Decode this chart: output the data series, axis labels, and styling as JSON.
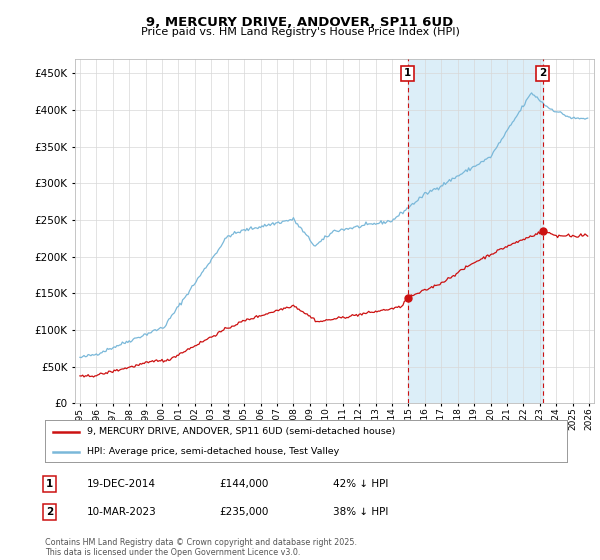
{
  "title": "9, MERCURY DRIVE, ANDOVER, SP11 6UD",
  "subtitle": "Price paid vs. HM Land Registry's House Price Index (HPI)",
  "legend_line1": "9, MERCURY DRIVE, ANDOVER, SP11 6UD (semi-detached house)",
  "legend_line2": "HPI: Average price, semi-detached house, Test Valley",
  "annotation1_label": "1",
  "annotation1_date": "19-DEC-2014",
  "annotation1_price": 144000,
  "annotation1_year": 2014.958,
  "annotation2_label": "2",
  "annotation2_date": "10-MAR-2023",
  "annotation2_price": 235000,
  "annotation2_year": 2023.167,
  "footer": "Contains HM Land Registry data © Crown copyright and database right 2025.\nThis data is licensed under the Open Government Licence v3.0.",
  "hpi_color": "#7ab8d9",
  "paid_color": "#cc1111",
  "annotation_color": "#cc1111",
  "fill_color": "#dceef8",
  "background_color": "#ffffff",
  "grid_color": "#d8d8d8",
  "ylim": [
    0,
    470000
  ],
  "yticks": [
    0,
    50000,
    100000,
    150000,
    200000,
    250000,
    300000,
    350000,
    400000,
    450000
  ],
  "xstart": 1995,
  "xend": 2026
}
